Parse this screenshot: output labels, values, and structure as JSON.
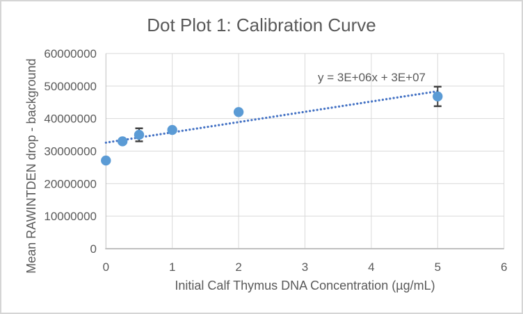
{
  "chart_data": {
    "type": "scatter",
    "title": "Dot Plot 1: Calibration Curve",
    "xlabel": "Initial Calf Thymus DNA Concentration (µg/mL)",
    "ylabel": "Mean RAWINTDEN drop - background",
    "xlim": [
      0,
      6
    ],
    "ylim": [
      0,
      60000000
    ],
    "xticks": [
      0,
      1,
      2,
      3,
      4,
      5,
      6
    ],
    "yticks": [
      0,
      10000000,
      20000000,
      30000000,
      40000000,
      50000000,
      60000000
    ],
    "xtick_labels": [
      "0",
      "1",
      "2",
      "3",
      "4",
      "5",
      "6"
    ],
    "ytick_labels": [
      "0",
      "10000000",
      "20000000",
      "30000000",
      "40000000",
      "50000000",
      "60000000"
    ],
    "grid": true,
    "legend": "none",
    "points": [
      {
        "x": 0,
        "y": 27100000
      },
      {
        "x": 0.25,
        "y": 33000000
      },
      {
        "x": 0.5,
        "y": 35000000,
        "yerr": 2000000
      },
      {
        "x": 1,
        "y": 36500000
      },
      {
        "x": 2,
        "y": 42000000
      },
      {
        "x": 5,
        "y": 46800000,
        "yerr": 3000000
      }
    ],
    "trendline": {
      "style": "dotted",
      "slope": 3160000,
      "intercept": 32600000,
      "x_start": 0,
      "x_end": 5,
      "equation_label": "y = 3E+06x + 3E+07"
    },
    "colors": {
      "marker": "#5B9BD5",
      "trendline": "#4472C4",
      "error_bar": "#404040",
      "gridline": "#D9D9D9",
      "axis_line": "#BFBFBF",
      "text": "#595959",
      "border": "#D5D5D5",
      "background": "#FFFFFF"
    }
  }
}
